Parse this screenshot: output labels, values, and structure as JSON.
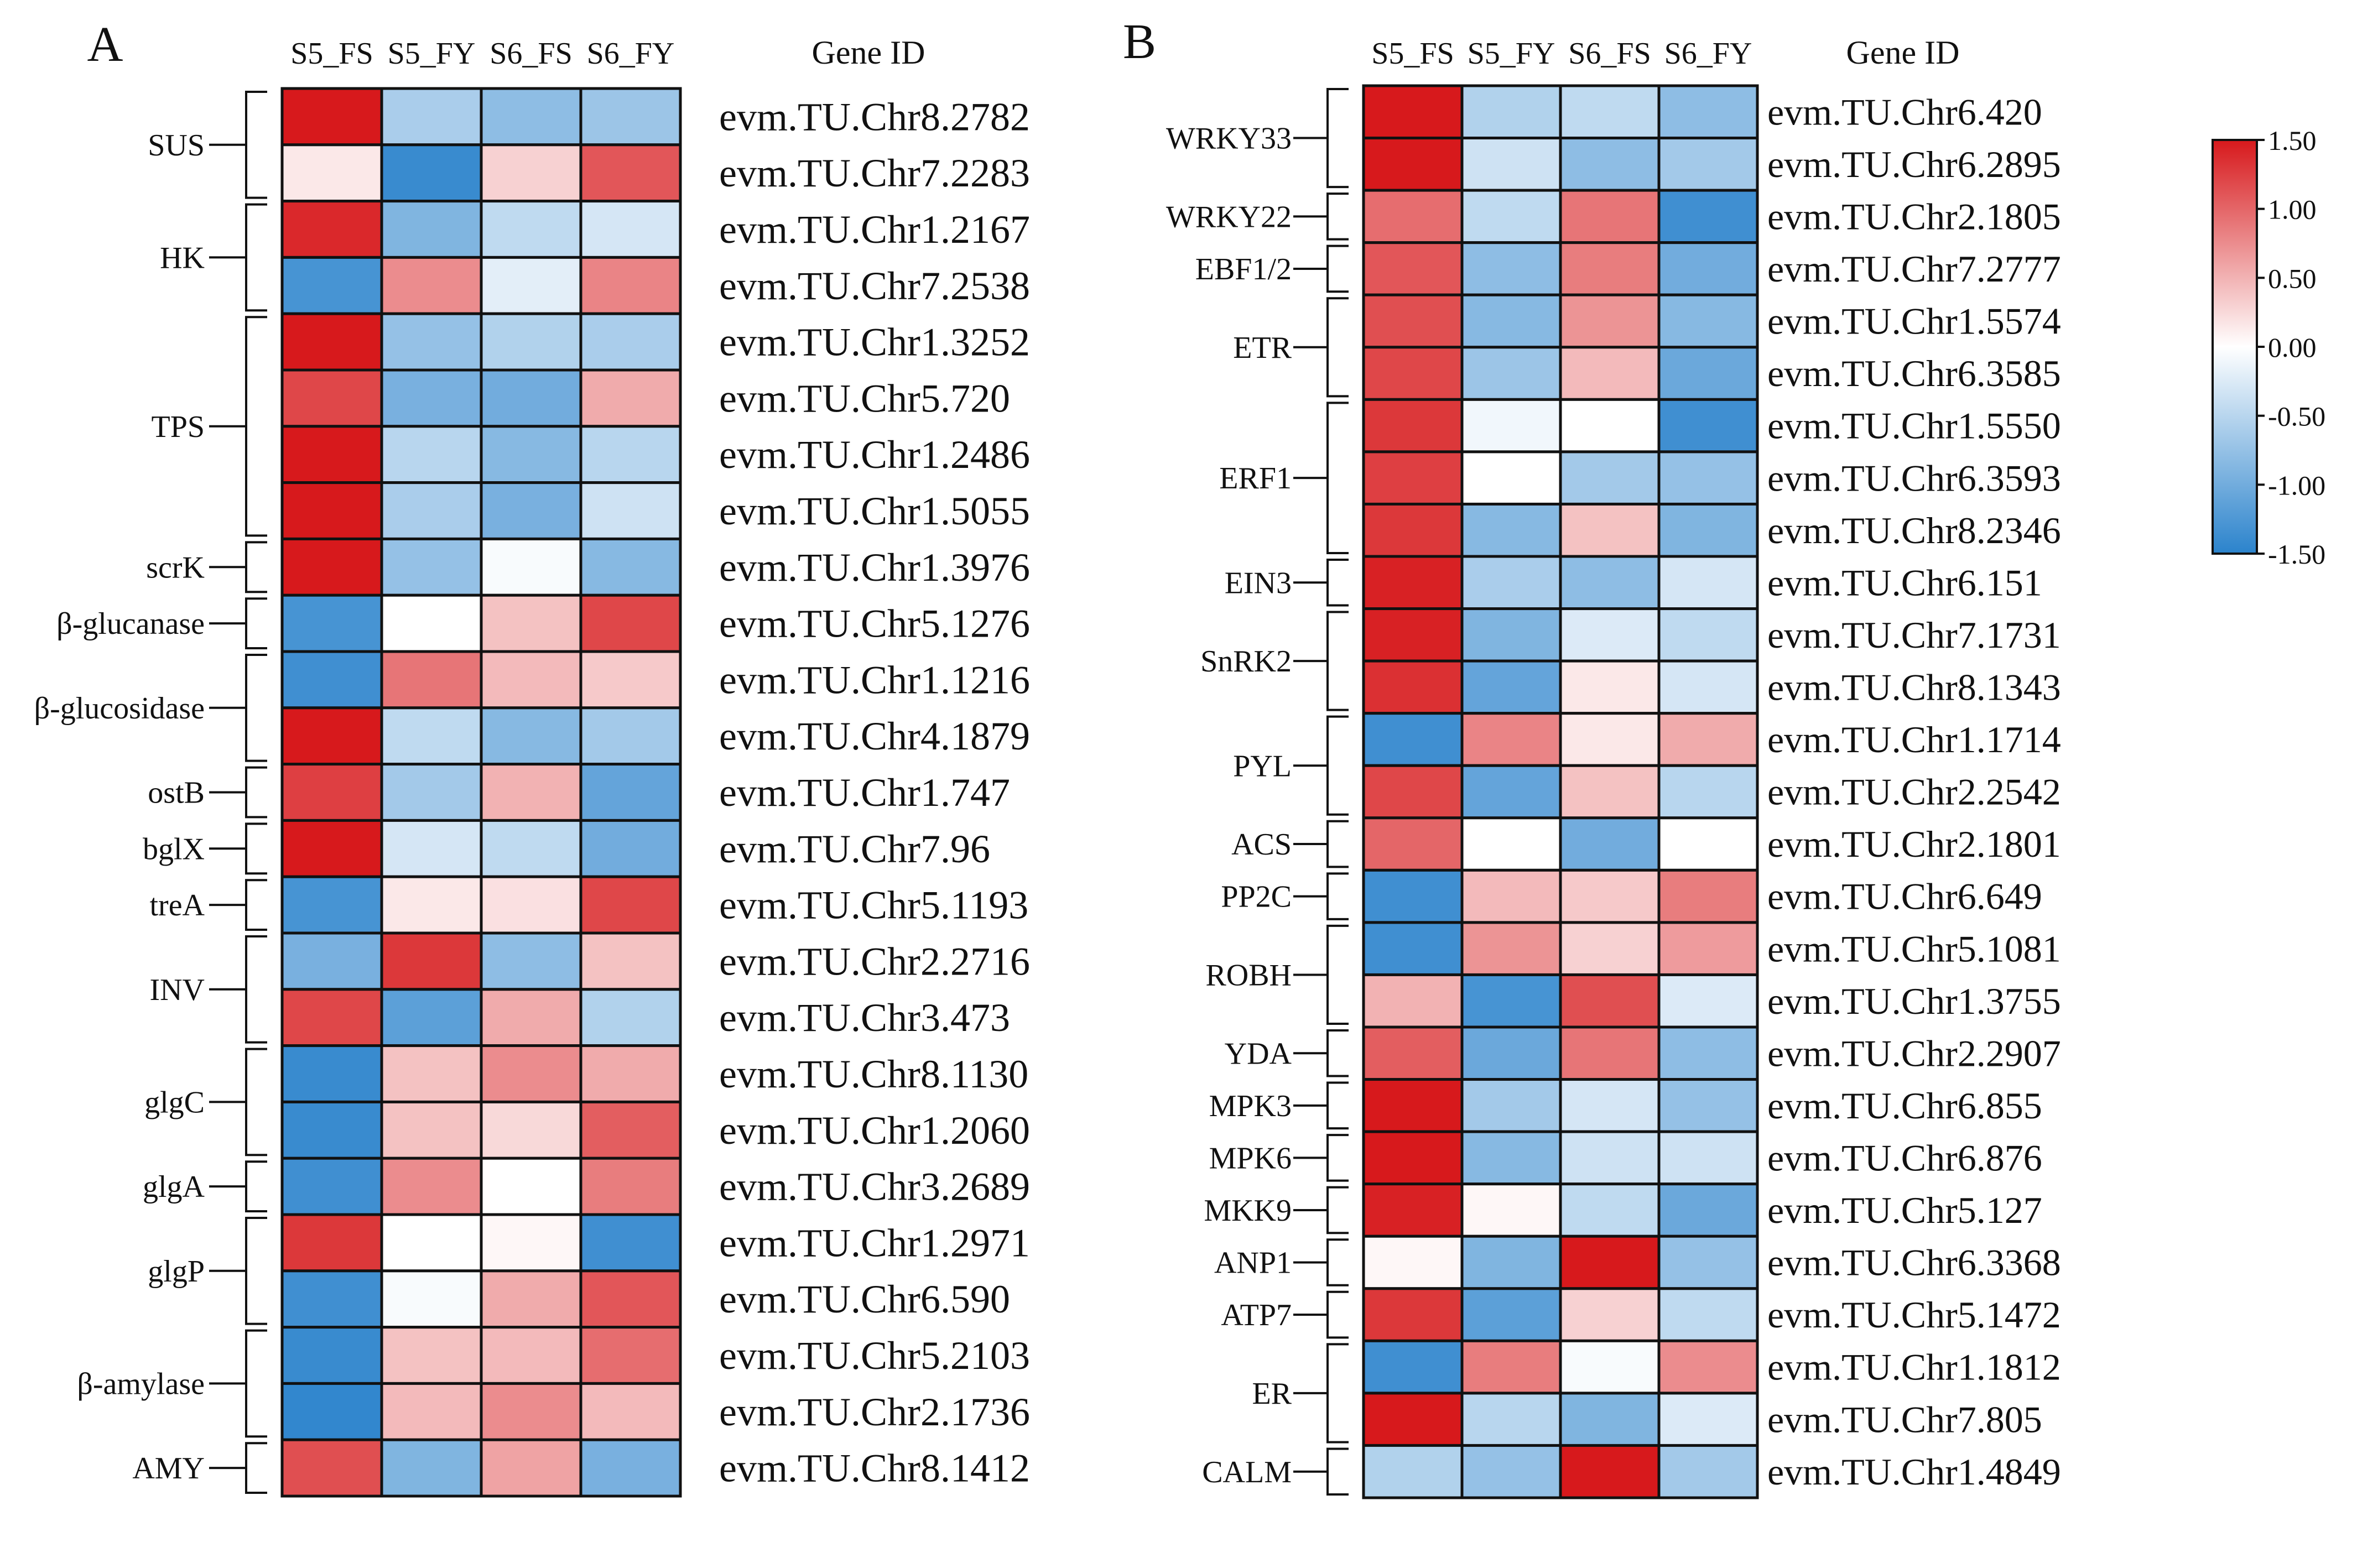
{
  "chart_data": [
    {
      "type": "heatmap",
      "panel_label": "A",
      "columns": [
        "S5_FS",
        "S5_FY",
        "S6_FS",
        "S6_FY"
      ],
      "row_label_header": "Gene ID",
      "groups": [
        {
          "name": "SUS",
          "rows": 2
        },
        {
          "name": "HK",
          "rows": 2
        },
        {
          "name": "TPS",
          "rows": 4
        },
        {
          "name": "scrK",
          "rows": 1
        },
        {
          "name": "β-glucanase",
          "rows": 1
        },
        {
          "name": "β-glucosidase",
          "rows": 2
        },
        {
          "name": "ostB",
          "rows": 1
        },
        {
          "name": "bglX",
          "rows": 1
        },
        {
          "name": "treA",
          "rows": 1
        },
        {
          "name": "INV",
          "rows": 2
        },
        {
          "name": "glgC",
          "rows": 2
        },
        {
          "name": "glgA",
          "rows": 1
        },
        {
          "name": "glgP",
          "rows": 2
        },
        {
          "name": "β-amylase",
          "rows": 2
        },
        {
          "name": "AMY",
          "rows": 1
        }
      ],
      "genes": [
        "evm.TU.Chr8.2782",
        "evm.TU.Chr7.2283",
        "evm.TU.Chr1.2167",
        "evm.TU.Chr7.2538",
        "evm.TU.Chr1.3252",
        "evm.TU.Chr5.720",
        "evm.TU.Chr1.2486",
        "evm.TU.Chr1.5055",
        "evm.TU.Chr1.3976",
        "evm.TU.Chr5.1276",
        "evm.TU.Chr1.1216",
        "evm.TU.Chr4.1879",
        "evm.TU.Chr1.747",
        "evm.TU.Chr7.96",
        "evm.TU.Chr5.1193",
        "evm.TU.Chr2.2716",
        "evm.TU.Chr3.473",
        "evm.TU.Chr8.1130",
        "evm.TU.Chr1.2060",
        "evm.TU.Chr3.2689",
        "evm.TU.Chr1.2971",
        "evm.TU.Chr6.590",
        "evm.TU.Chr5.2103",
        "evm.TU.Chr2.1736",
        "evm.TU.Chr8.1412"
      ],
      "values": [
        [
          1.5,
          -0.6,
          -0.8,
          -0.7
        ],
        [
          0.15,
          -1.4,
          0.3,
          1.1
        ],
        [
          1.4,
          -0.9,
          -0.45,
          -0.3
        ],
        [
          -1.3,
          0.75,
          -0.2,
          0.8
        ],
        [
          1.5,
          -0.75,
          -0.55,
          -0.6
        ],
        [
          1.2,
          -0.95,
          -1.0,
          0.55
        ],
        [
          1.5,
          -0.5,
          -0.85,
          -0.5
        ],
        [
          1.5,
          -0.6,
          -0.95,
          -0.35
        ],
        [
          1.5,
          -0.75,
          -0.05,
          -0.85
        ],
        [
          -1.3,
          0.0,
          0.4,
          1.2
        ],
        [
          -1.35,
          0.9,
          0.45,
          0.35
        ],
        [
          1.5,
          -0.45,
          -0.85,
          -0.65
        ],
        [
          1.25,
          -0.65,
          0.5,
          -1.1
        ],
        [
          1.5,
          -0.3,
          -0.45,
          -1.0
        ],
        [
          -1.3,
          0.15,
          0.2,
          1.2
        ],
        [
          -0.95,
          1.3,
          -0.8,
          0.4
        ],
        [
          1.2,
          -1.15,
          0.55,
          -0.55
        ],
        [
          -1.4,
          0.4,
          0.75,
          0.55
        ],
        [
          -1.4,
          0.4,
          0.25,
          1.05
        ],
        [
          -1.35,
          0.75,
          0.0,
          0.85
        ],
        [
          1.3,
          0.0,
          0.05,
          -1.35
        ],
        [
          -1.35,
          -0.05,
          0.55,
          1.1
        ],
        [
          -1.4,
          0.4,
          0.45,
          0.95
        ],
        [
          -1.45,
          0.45,
          0.75,
          0.45
        ],
        [
          1.15,
          -0.9,
          0.6,
          -0.95
        ]
      ],
      "value_range": [
        -1.5,
        1.5
      ]
    },
    {
      "type": "heatmap",
      "panel_label": "B",
      "columns": [
        "S5_FS",
        "S5_FY",
        "S6_FS",
        "S6_FY"
      ],
      "row_label_header": "Gene ID",
      "groups": [
        {
          "name": "WRKY33",
          "rows": 2
        },
        {
          "name": "WRKY22",
          "rows": 1
        },
        {
          "name": "EBF1/2",
          "rows": 1
        },
        {
          "name": "ETR",
          "rows": 2
        },
        {
          "name": "ERF1",
          "rows": 3
        },
        {
          "name": "EIN3",
          "rows": 1
        },
        {
          "name": "SnRK2",
          "rows": 2
        },
        {
          "name": "PYL",
          "rows": 2
        },
        {
          "name": "ACS",
          "rows": 1
        },
        {
          "name": "PP2C",
          "rows": 1
        },
        {
          "name": "ROBH",
          "rows": 2
        },
        {
          "name": "YDA",
          "rows": 1
        },
        {
          "name": "MPK3",
          "rows": 1
        },
        {
          "name": "MPK6",
          "rows": 1
        },
        {
          "name": "MKK9",
          "rows": 1
        },
        {
          "name": "ANP1",
          "rows": 1
        },
        {
          "name": "ATP7",
          "rows": 1
        },
        {
          "name": "ER",
          "rows": 2
        },
        {
          "name": "CALM",
          "rows": 1
        }
      ],
      "genes": [
        "evm.TU.Chr6.420",
        "evm.TU.Chr6.2895",
        "evm.TU.Chr2.1805",
        "evm.TU.Chr7.2777",
        "evm.TU.Chr1.5574",
        "evm.TU.Chr6.3585",
        "evm.TU.Chr1.5550",
        "evm.TU.Chr6.3593",
        "evm.TU.Chr8.2346",
        "evm.TU.Chr6.151",
        "evm.TU.Chr7.1731",
        "evm.TU.Chr8.1343",
        "evm.TU.Chr1.1714",
        "evm.TU.Chr2.2542",
        "evm.TU.Chr2.1801",
        "evm.TU.Chr6.649",
        "evm.TU.Chr5.1081",
        "evm.TU.Chr1.3755",
        "evm.TU.Chr2.2907",
        "evm.TU.Chr6.855",
        "evm.TU.Chr6.876",
        "evm.TU.Chr5.127",
        "evm.TU.Chr6.3368",
        "evm.TU.Chr5.1472",
        "evm.TU.Chr1.1812",
        "evm.TU.Chr7.805",
        "evm.TU.Chr1.4849"
      ],
      "values": [
        [
          1.5,
          -0.55,
          -0.45,
          -0.8
        ],
        [
          1.5,
          -0.35,
          -0.8,
          -0.65
        ],
        [
          0.95,
          -0.45,
          0.9,
          -1.35
        ],
        [
          1.1,
          -0.8,
          0.85,
          -1.0
        ],
        [
          1.15,
          -0.85,
          0.7,
          -0.85
        ],
        [
          1.2,
          -0.7,
          0.45,
          -1.05
        ],
        [
          1.3,
          -0.1,
          0.0,
          -1.35
        ],
        [
          1.25,
          0.0,
          -0.65,
          -0.75
        ],
        [
          1.3,
          -0.85,
          0.4,
          -0.9
        ],
        [
          1.45,
          -0.6,
          -0.8,
          -0.3
        ],
        [
          1.45,
          -0.9,
          -0.25,
          -0.45
        ],
        [
          1.35,
          -1.1,
          0.15,
          -0.3
        ],
        [
          -1.35,
          0.8,
          0.15,
          0.55
        ],
        [
          1.2,
          -1.1,
          0.4,
          -0.5
        ],
        [
          1.0,
          0.0,
          -1.0,
          0.0
        ],
        [
          -1.35,
          0.45,
          0.35,
          0.85
        ],
        [
          -1.35,
          0.7,
          0.3,
          0.65
        ],
        [
          0.5,
          -1.3,
          1.15,
          -0.25
        ],
        [
          1.05,
          -1.05,
          0.9,
          -0.8
        ],
        [
          1.5,
          -0.65,
          -0.3,
          -0.75
        ],
        [
          1.5,
          -0.85,
          -0.35,
          -0.35
        ],
        [
          1.45,
          0.05,
          -0.45,
          -1.05
        ],
        [
          0.05,
          -0.9,
          1.5,
          -0.75
        ],
        [
          1.3,
          -1.15,
          0.3,
          -0.45
        ],
        [
          -1.35,
          0.85,
          -0.05,
          0.75
        ],
        [
          1.5,
          -0.5,
          -0.9,
          -0.25
        ],
        [
          -0.55,
          -0.75,
          1.5,
          -0.65
        ]
      ],
      "value_range": [
        -1.5,
        1.5
      ]
    }
  ],
  "colorbar": {
    "ticks": [
      "1.50",
      "1.00",
      "0.50",
      "0.00",
      "-0.50",
      "-1.00",
      "-1.50"
    ],
    "colors": {
      "high": "#d7191c",
      "mid": "#ffffff",
      "low": "#2b83cc"
    }
  }
}
